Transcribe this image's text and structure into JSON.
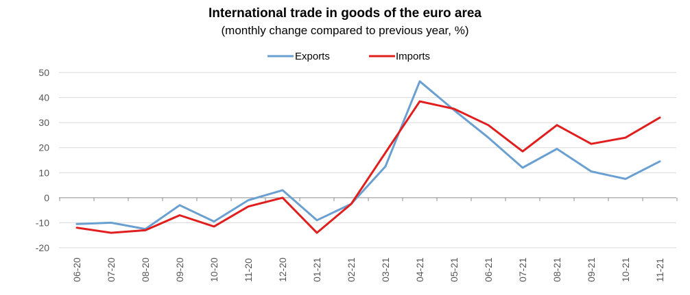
{
  "chart_data": {
    "type": "line",
    "title": "International trade in goods of the euro area",
    "subtitle": "(monthly change compared to previous year, %)",
    "xlabel": "",
    "ylabel": "",
    "ylim": [
      -20,
      50
    ],
    "yticks": [
      50,
      40,
      30,
      20,
      10,
      0,
      -10,
      -20
    ],
    "grid": true,
    "legend_position": "top-center",
    "categories": [
      "06-20",
      "07-20",
      "08-20",
      "09-20",
      "10-20",
      "11-20",
      "12-20",
      "01-21",
      "02-21",
      "03-21",
      "04-21",
      "05-21",
      "06-21",
      "07-21",
      "08-21",
      "09-21",
      "10-21",
      "11-21"
    ],
    "series": [
      {
        "name": "Exports",
        "color": "#6a9fd2",
        "values": [
          -10.5,
          -10.0,
          -12.5,
          -3.0,
          -9.5,
          -1.0,
          3.0,
          -9.0,
          -2.5,
          12.5,
          46.5,
          35.0,
          24.0,
          12.0,
          19.5,
          10.5,
          7.5,
          14.5
        ]
      },
      {
        "name": "Imports",
        "color": "#e01e1e",
        "values": [
          -12.0,
          -14.0,
          -13.0,
          -7.0,
          -11.5,
          -3.5,
          0.0,
          -14.0,
          -2.5,
          18.0,
          38.5,
          35.5,
          29.0,
          18.5,
          29.0,
          21.5,
          24.0,
          32.0
        ]
      }
    ]
  }
}
